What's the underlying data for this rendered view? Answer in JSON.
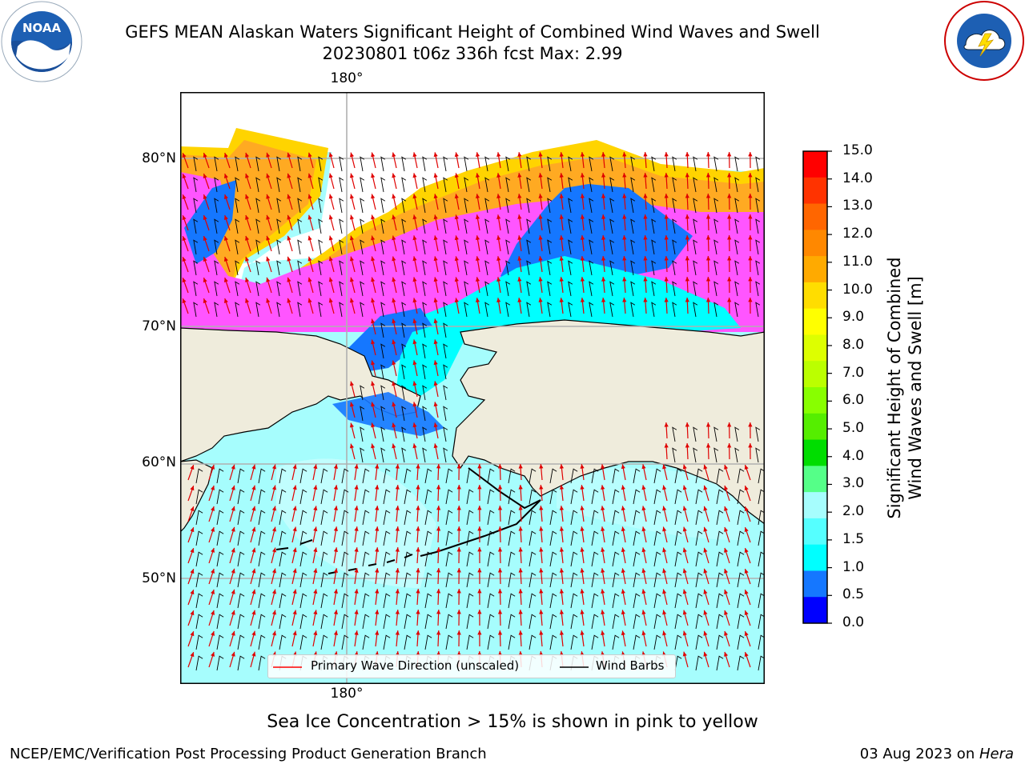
{
  "header": {
    "title_line1": "GEFS MEAN Alaskan Waters Significant Height of Combined Wind Waves and Swell",
    "title_line2": "20230801 t06z 336h fcst   Max: 2.99",
    "left_logo": "noaa-logo-icon",
    "right_logo": "nws-logo-icon",
    "noaa_logo_text": "NOAA"
  },
  "map": {
    "lon_label_top": "180°",
    "lon_label_bottom": "180°",
    "lat_labels": [
      "80°N",
      "70°N",
      "60°N",
      "50°N"
    ],
    "land_color": "#efecdc",
    "ocean_color": "#a6fdfd",
    "ice_colors": [
      "#ff55ff",
      "#ffaa00",
      "#ffee00"
    ]
  },
  "legend": {
    "wave_dir_label": "Primary Wave Direction (unscaled)",
    "wind_barb_label": "Wind Barbs",
    "wave_dir_color": "#ff0000",
    "wind_barb_color": "#000000"
  },
  "colorbar": {
    "label_line1": "Significant Height of Combined",
    "label_line2": "Wind Waves and Swell [m]",
    "ticks": [
      "15.0",
      "14.0",
      "13.0",
      "12.0",
      "11.0",
      "10.0",
      "9.0",
      "8.0",
      "7.0",
      "6.0",
      "5.0",
      "4.0",
      "3.0",
      "2.0",
      "1.5",
      "1.0",
      "0.5",
      "0.0"
    ],
    "colors_top_to_bottom": [
      "#ff0000",
      "#ff3300",
      "#ff6600",
      "#ff8800",
      "#ffaa00",
      "#ffdd00",
      "#ffff00",
      "#ddff00",
      "#bbff00",
      "#88ff00",
      "#55ee00",
      "#00dd00",
      "#55ff88",
      "#a6fdfd",
      "#55ffff",
      "#00ffff",
      "#1577ff",
      "#0000ff"
    ]
  },
  "caption": "Sea Ice Concentration > 15% is shown in pink to yellow",
  "footer": {
    "left": "NCEP/EMC/Verification Post Processing Product Generation Branch",
    "right_date": "03 Aug 2023 on ",
    "right_machine": "Hera"
  }
}
